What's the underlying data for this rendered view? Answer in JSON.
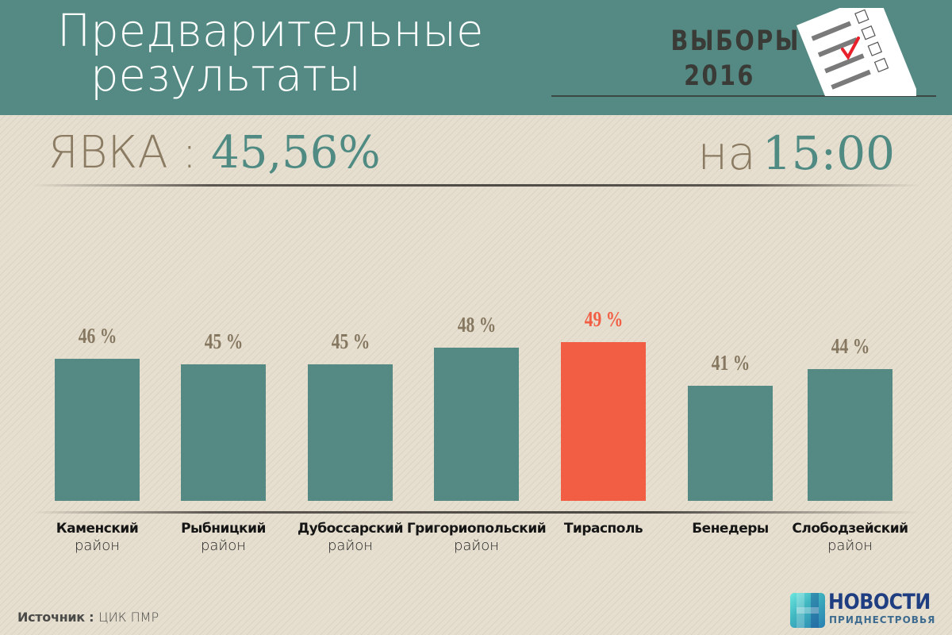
{
  "header": {
    "title_line1": "Предварительные",
    "title_line2": "результаты",
    "elections_line1": "ВЫБОРЫ",
    "elections_line2": "2016",
    "ballot_icon": "ballot-checkbox-icon",
    "colors": {
      "header_bg": "#548a83",
      "title": "#ffffff",
      "check": "#e8202a"
    }
  },
  "turnout": {
    "label": "ЯВКА :",
    "value": "45,56%",
    "time_label": "на",
    "time_value": "15:00"
  },
  "chart_data": {
    "type": "bar",
    "title": "Предварительные результаты — ЯВКА : 45,56% на 15:00",
    "xlabel": "",
    "ylabel": "",
    "ylim": [
      0,
      50
    ],
    "grid": false,
    "legend": null,
    "categories": [
      "Каменский район",
      "Рыбницкий район",
      "Дубоссарский район",
      "Григориопольский район",
      "Тирасполь",
      "Бенедеры",
      "Слободзейский район"
    ],
    "values": [
      46,
      45,
      45,
      48,
      49,
      41,
      44
    ],
    "value_labels": [
      "46 %",
      "45 %",
      "45 %",
      "48 %",
      "49 %",
      "41 %",
      "44 %"
    ],
    "highlight_index": 4,
    "colors": {
      "bar": "#548a83",
      "highlight": "#f25e44",
      "label": "#867760"
    }
  },
  "categories_display": [
    {
      "name": "Каменский",
      "sub": "район"
    },
    {
      "name": "Рыбницкий",
      "sub": "район"
    },
    {
      "name": "Дубоссарский",
      "sub": "район"
    },
    {
      "name": "Григориопольский",
      "sub": "район"
    },
    {
      "name": "Тирасполь",
      "sub": ""
    },
    {
      "name": "Бенедеры",
      "sub": ""
    },
    {
      "name": "Слободзейский",
      "sub": "район"
    }
  ],
  "footer": {
    "source_label": "Источник :",
    "source_value": "ЦИК ПМР",
    "logo_line1": "НОВОСТИ",
    "logo_line2": "ПРИДНЕСТРОВЬЯ"
  }
}
